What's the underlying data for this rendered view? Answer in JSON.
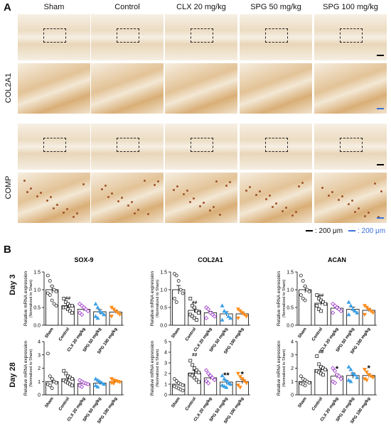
{
  "panel_a_label": "A",
  "panel_b_label": "B",
  "groups": [
    "Sham",
    "Control",
    "CLX 20 mg/kg",
    "SPG 50 mg/kg",
    "SPG 100 mg/kg"
  ],
  "stains": [
    "COL2A1",
    "COMP"
  ],
  "scale_legend": {
    "black": ": 200 μm",
    "blue": ": 200 μm"
  },
  "colors": {
    "sham": "#222222",
    "control": "#222222",
    "clx": "#9b30c8",
    "spg50": "#3aa0e6",
    "spg100": "#ff8c1a",
    "scale_blue": "#3a70d8",
    "tissue_bg": "#f3eadc",
    "stain": "#c98a45"
  },
  "row_labels": [
    "Day 3",
    "Day 28"
  ],
  "y_axis_label": {
    "line1": "Relative mRNA expression",
    "line2": "(Normalized to Sham)"
  },
  "chart_data": [
    {
      "type": "bar",
      "title": "SOX-9",
      "row": "Day 3",
      "categories": [
        "Sham",
        "Control",
        "CLX 20 mg/kg",
        "SPG 50 mg/kg",
        "SPG 100 mg/kg"
      ],
      "values": [
        1.0,
        0.55,
        0.45,
        0.38,
        0.37
      ],
      "errors": [
        0.1,
        0.05,
        0.05,
        0.06,
        0.04
      ],
      "ylim": [
        0,
        1.5
      ],
      "yticks": [
        "0.0",
        "0.5",
        "1.0",
        "1.5"
      ],
      "annotations": [
        "",
        "##",
        "",
        "",
        ""
      ],
      "points": [
        [
          1.4,
          1.25,
          1.1,
          1.0,
          0.95,
          0.9,
          0.85,
          0.7,
          0.6,
          0.55
        ],
        [
          0.75,
          0.65,
          0.6,
          0.55,
          0.55,
          0.5,
          0.5,
          0.45,
          0.4,
          0.35
        ],
        [
          0.6,
          0.55,
          0.5,
          0.45,
          0.4,
          0.35,
          0.3
        ],
        [
          0.6,
          0.5,
          0.4,
          0.35,
          0.3,
          0.25,
          0.2
        ],
        [
          0.5,
          0.45,
          0.4,
          0.35,
          0.3,
          0.25
        ]
      ]
    },
    {
      "type": "bar",
      "title": "COL2A1",
      "row": "Day 3",
      "categories": [
        "Sham",
        "Control",
        "CLX 20 mg/kg",
        "SPG 50 mg/kg",
        "SPG 100 mg/kg"
      ],
      "values": [
        1.0,
        0.42,
        0.35,
        0.32,
        0.32
      ],
      "errors": [
        0.12,
        0.06,
        0.04,
        0.06,
        0.04
      ],
      "ylim": [
        0,
        1.5
      ],
      "yticks": [
        "0.0",
        "0.5",
        "1.0",
        "1.5"
      ],
      "annotations": [
        "",
        "##",
        "",
        "",
        ""
      ],
      "points": [
        [
          1.45,
          1.4,
          1.25,
          1.0,
          0.9,
          0.75,
          0.65
        ],
        [
          0.75,
          0.55,
          0.5,
          0.4,
          0.35,
          0.3,
          0.25,
          0.2,
          0.15
        ],
        [
          0.5,
          0.45,
          0.35,
          0.3,
          0.25,
          0.2
        ],
        [
          0.55,
          0.4,
          0.35,
          0.25,
          0.2,
          0.15
        ],
        [
          0.45,
          0.4,
          0.35,
          0.3,
          0.25,
          0.2
        ]
      ]
    },
    {
      "type": "bar",
      "title": "ACAN",
      "row": "Day 3",
      "categories": [
        "Sham",
        "Control",
        "CLX 20 mg/kg",
        "SPG 50 mg/kg",
        "SPG 100 mg/kg"
      ],
      "values": [
        1.0,
        0.62,
        0.48,
        0.45,
        0.42
      ],
      "errors": [
        0.08,
        0.06,
        0.05,
        0.06,
        0.04
      ],
      "ylim": [
        0,
        1.5
      ],
      "yticks": [
        "0.0",
        "0.5",
        "1.0",
        "1.5"
      ],
      "annotations": [
        "",
        "##",
        "",
        "",
        ""
      ],
      "points": [
        [
          1.4,
          1.25,
          1.1,
          1.0,
          0.95,
          0.85,
          0.75,
          0.7
        ],
        [
          0.85,
          0.75,
          0.7,
          0.65,
          0.6,
          0.55,
          0.45,
          0.4
        ],
        [
          0.6,
          0.55,
          0.5,
          0.45,
          0.4,
          0.35
        ],
        [
          0.65,
          0.55,
          0.45,
          0.4,
          0.35,
          0.3
        ],
        [
          0.55,
          0.5,
          0.45,
          0.4,
          0.35,
          0.3
        ]
      ]
    },
    {
      "type": "bar",
      "title": "",
      "row": "Day 28",
      "categories": [
        "Sham",
        "Control",
        "CLX 20 mg/kg",
        "SPG 50 mg/kg",
        "SPG 100 mg/kg"
      ],
      "values": [
        1.0,
        1.2,
        0.85,
        0.88,
        1.0
      ],
      "errors": [
        0.2,
        0.15,
        0.08,
        0.1,
        0.06
      ],
      "ylim": [
        0,
        4
      ],
      "yticks": [
        "0",
        "1",
        "2",
        "3",
        "4"
      ],
      "annotations": [
        "",
        "",
        "",
        "",
        ""
      ],
      "points": [
        [
          3.1,
          1.4,
          1.2,
          1.0,
          0.9,
          0.8,
          0.7,
          0.5
        ],
        [
          1.8,
          1.6,
          1.4,
          1.3,
          1.2,
          1.1,
          1.0,
          0.9,
          0.8,
          0.7
        ],
        [
          1.1,
          1.0,
          0.9,
          0.85,
          0.8,
          0.7,
          0.6
        ],
        [
          1.2,
          1.1,
          1.0,
          0.9,
          0.8,
          0.7,
          0.6
        ],
        [
          1.2,
          1.1,
          1.05,
          1.0,
          0.95,
          0.9,
          0.85
        ]
      ]
    },
    {
      "type": "bar",
      "title": "",
      "row": "Day 28",
      "categories": [
        "Sham",
        "Control",
        "CLX 20 mg/kg",
        "SPG 50 mg/kg",
        "SPG 100 mg/kg"
      ],
      "values": [
        1.0,
        2.05,
        1.6,
        1.2,
        1.25
      ],
      "errors": [
        0.15,
        0.25,
        0.15,
        0.15,
        0.2
      ],
      "ylim": [
        0,
        5
      ],
      "yticks": [
        "0",
        "1",
        "2",
        "3",
        "4",
        "5"
      ],
      "annotations": [
        "",
        "##",
        "",
        "**",
        "*"
      ],
      "points": [
        [
          1.5,
          1.3,
          1.1,
          1.0,
          0.9,
          0.8,
          0.7,
          0.6,
          0.5,
          0.4
        ],
        [
          3.2,
          2.8,
          2.5,
          2.3,
          2.1,
          1.9,
          1.8,
          1.6,
          1.4,
          1.2
        ],
        [
          2.3,
          2.0,
          1.8,
          1.6,
          1.4,
          1.3,
          1.1
        ],
        [
          1.8,
          1.5,
          1.3,
          1.1,
          1.0,
          0.9,
          0.8,
          0.7
        ],
        [
          2.0,
          1.7,
          1.5,
          1.3,
          1.1,
          0.9,
          0.7
        ]
      ]
    },
    {
      "type": "bar",
      "title": "",
      "row": "Day 28",
      "categories": [
        "Sham",
        "Control",
        "CLX 20 mg/kg",
        "SPG 50 mg/kg",
        "SPG 100 mg/kg"
      ],
      "values": [
        1.0,
        1.9,
        1.4,
        1.45,
        1.45
      ],
      "errors": [
        0.1,
        0.15,
        0.15,
        0.2,
        0.15
      ],
      "ylim": [
        0,
        4
      ],
      "yticks": [
        "0",
        "1",
        "2",
        "3",
        "4"
      ],
      "annotations": [
        "",
        "##",
        "*",
        "",
        "*"
      ],
      "points": [
        [
          1.4,
          1.2,
          1.1,
          1.0,
          0.9,
          0.85,
          0.8,
          0.7
        ],
        [
          2.9,
          2.3,
          2.1,
          2.0,
          1.9,
          1.8,
          1.7,
          1.6,
          1.5
        ],
        [
          2.0,
          1.8,
          1.5,
          1.4,
          1.2,
          1.0,
          0.9
        ],
        [
          2.1,
          1.9,
          1.6,
          1.5,
          1.3,
          1.1,
          1.0
        ],
        [
          1.9,
          1.7,
          1.5,
          1.4,
          1.3,
          1.2,
          1.1
        ]
      ]
    }
  ]
}
